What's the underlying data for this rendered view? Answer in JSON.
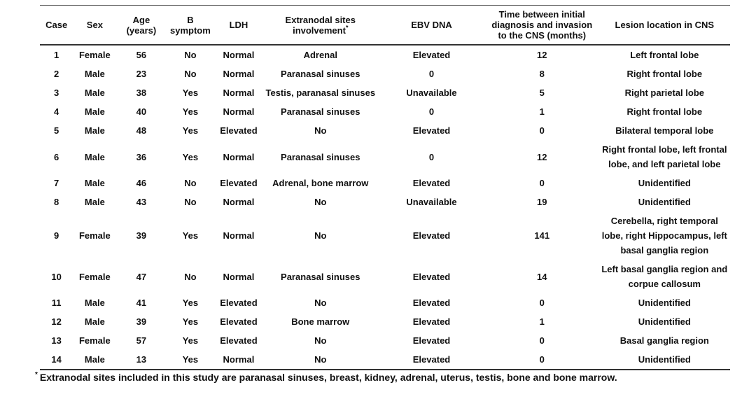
{
  "table": {
    "headers": [
      {
        "label": "Case",
        "sup": ""
      },
      {
        "label": "Sex",
        "sup": ""
      },
      {
        "label": "Age (years)",
        "sup": ""
      },
      {
        "label": "B symptom",
        "sup": ""
      },
      {
        "label": "LDH",
        "sup": ""
      },
      {
        "label": "Extranodal sites involvement",
        "sup": "*"
      },
      {
        "label": "EBV DNA",
        "sup": ""
      },
      {
        "label": "Time between initial diagnosis and invasion to the CNS (months)",
        "sup": ""
      },
      {
        "label": "Lesion location in CNS",
        "sup": ""
      }
    ],
    "column_keys": [
      "case",
      "sex",
      "age",
      "b_symptom",
      "ldh",
      "extranodal",
      "ebv_dna",
      "time_months",
      "lesion"
    ],
    "rows": [
      {
        "case": "1",
        "sex": "Female",
        "age": "56",
        "b_symptom": "No",
        "ldh": "Normal",
        "extranodal": "Adrenal",
        "ebv_dna": "Elevated",
        "time_months": "12",
        "lesion": "Left frontal lobe"
      },
      {
        "case": "2",
        "sex": "Male",
        "age": "23",
        "b_symptom": "No",
        "ldh": "Normal",
        "extranodal": "Paranasal sinuses",
        "ebv_dna": "0",
        "time_months": "8",
        "lesion": "Right frontal lobe"
      },
      {
        "case": "3",
        "sex": "Male",
        "age": "38",
        "b_symptom": "Yes",
        "ldh": "Normal",
        "extranodal": "Testis, paranasal sinuses",
        "ebv_dna": "Unavailable",
        "time_months": "5",
        "lesion": "Right parietal lobe"
      },
      {
        "case": "4",
        "sex": "Male",
        "age": "40",
        "b_symptom": "Yes",
        "ldh": "Normal",
        "extranodal": "Paranasal sinuses",
        "ebv_dna": "0",
        "time_months": "1",
        "lesion": "Right frontal lobe"
      },
      {
        "case": "5",
        "sex": "Male",
        "age": "48",
        "b_symptom": "Yes",
        "ldh": "Elevated",
        "extranodal": "No",
        "ebv_dna": "Elevated",
        "time_months": "0",
        "lesion": "Bilateral temporal lobe"
      },
      {
        "case": "6",
        "sex": "Male",
        "age": "36",
        "b_symptom": "Yes",
        "ldh": "Normal",
        "extranodal": "Paranasal sinuses",
        "ebv_dna": "0",
        "time_months": "12",
        "lesion": "Right frontal lobe, left frontal lobe, and left parietal lobe"
      },
      {
        "case": "7",
        "sex": "Male",
        "age": "46",
        "b_symptom": "No",
        "ldh": "Elevated",
        "extranodal": "Adrenal, bone marrow",
        "ebv_dna": "Elevated",
        "time_months": "0",
        "lesion": "Unidentified"
      },
      {
        "case": "8",
        "sex": "Male",
        "age": "43",
        "b_symptom": "No",
        "ldh": "Normal",
        "extranodal": "No",
        "ebv_dna": "Unavailable",
        "time_months": "19",
        "lesion": "Unidentified"
      },
      {
        "case": "9",
        "sex": "Female",
        "age": "39",
        "b_symptom": "Yes",
        "ldh": "Normal",
        "extranodal": "No",
        "ebv_dna": "Elevated",
        "time_months": "141",
        "lesion": "Cerebella, right temporal lobe, right Hippocampus, left basal ganglia region"
      },
      {
        "case": "10",
        "sex": "Female",
        "age": "47",
        "b_symptom": "No",
        "ldh": "Normal",
        "extranodal": "Paranasal sinuses",
        "ebv_dna": "Elevated",
        "time_months": "14",
        "lesion": "Left basal ganglia region and corpue callosum"
      },
      {
        "case": "11",
        "sex": "Male",
        "age": "41",
        "b_symptom": "Yes",
        "ldh": "Elevated",
        "extranodal": "No",
        "ebv_dna": "Elevated",
        "time_months": "0",
        "lesion": "Unidentified"
      },
      {
        "case": "12",
        "sex": "Male",
        "age": "39",
        "b_symptom": "Yes",
        "ldh": "Elevated",
        "extranodal": "Bone marrow",
        "ebv_dna": "Elevated",
        "time_months": "1",
        "lesion": "Unidentified"
      },
      {
        "case": "13",
        "sex": "Female",
        "age": "57",
        "b_symptom": "Yes",
        "ldh": "Elevated",
        "extranodal": "No",
        "ebv_dna": "Elevated",
        "time_months": "0",
        "lesion": "Basal ganglia region"
      },
      {
        "case": "14",
        "sex": "Male",
        "age": "13",
        "b_symptom": "Yes",
        "ldh": "Normal",
        "extranodal": "No",
        "ebv_dna": "Elevated",
        "time_months": "0",
        "lesion": "Unidentified"
      }
    ]
  },
  "footnote": {
    "sup": "*",
    "text": "Extranodal sites included in this study are paranasal sinuses, breast, kidney, adrenal, uterus, testis, bone and bone marrow."
  },
  "colors": {
    "text": "#111111",
    "rule": "#333333",
    "background": "#ffffff"
  }
}
